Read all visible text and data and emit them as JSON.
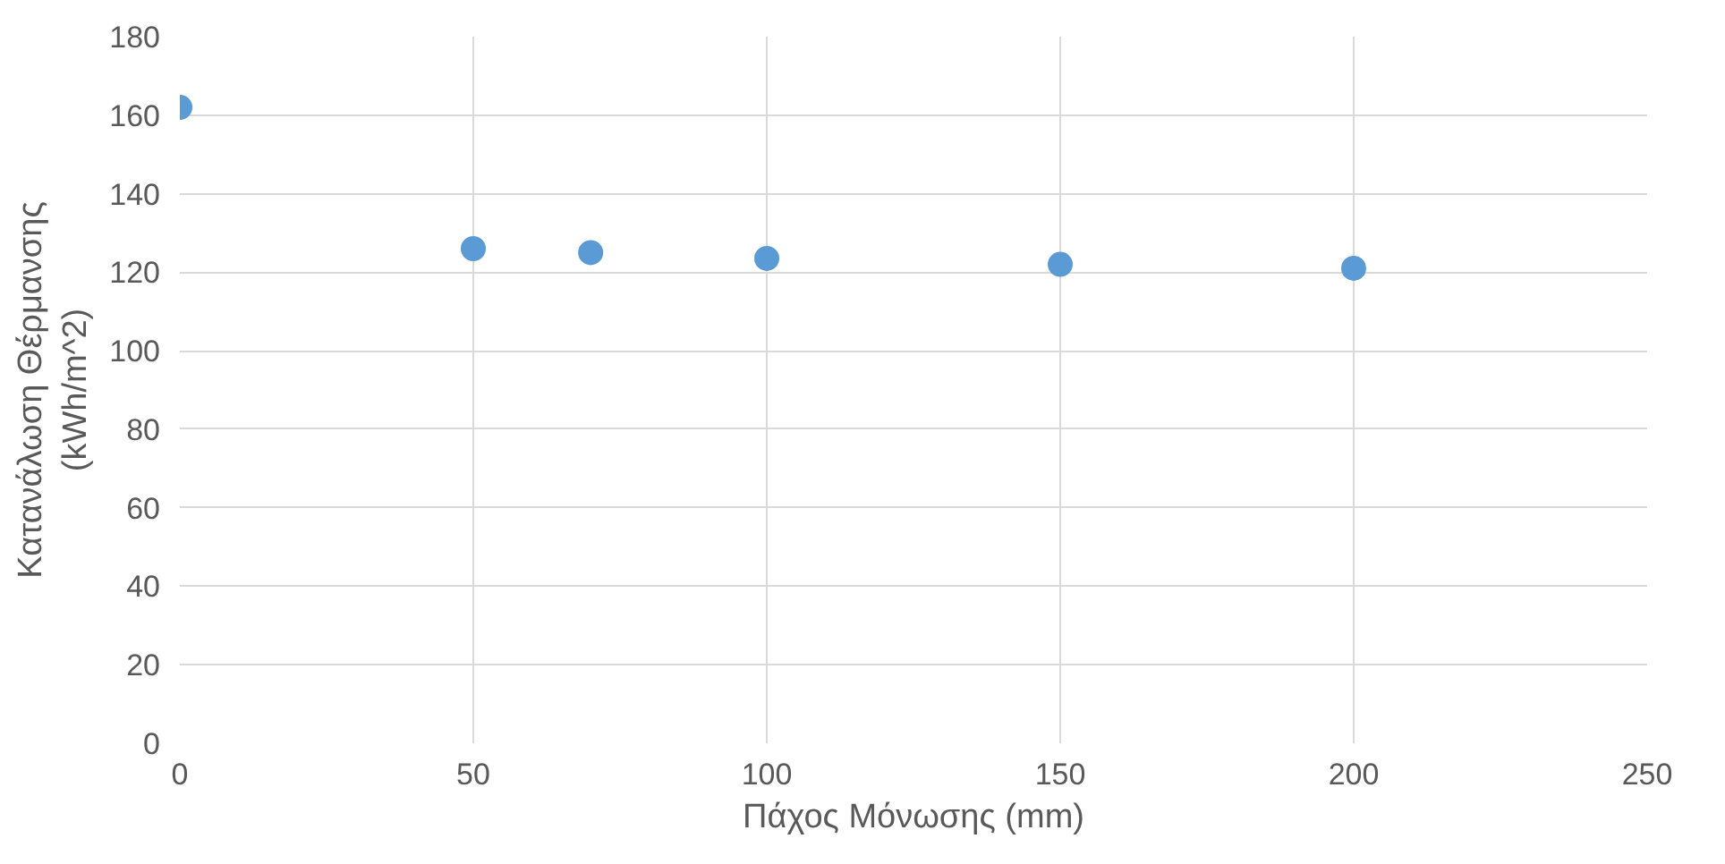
{
  "chart_data": {
    "type": "scatter",
    "xlabel": "Πάχος Μόνωσης (mm)",
    "ylabel": "Κατανάλωση Θέρμανσης\n(kWh/m^2)",
    "x": [
      0,
      50,
      70,
      100,
      150,
      200
    ],
    "series": [
      {
        "color": "#5b9bd5",
        "values": [
          162,
          126,
          125,
          123.5,
          122,
          121
        ]
      }
    ],
    "xlim": [
      0,
      250
    ],
    "xticks": [
      0,
      50,
      100,
      150,
      200,
      250
    ],
    "ylim": [
      0,
      180
    ],
    "yticks": [
      0,
      20,
      40,
      60,
      80,
      100,
      120,
      140,
      160,
      180
    ],
    "grid": true,
    "marker": "circle"
  }
}
